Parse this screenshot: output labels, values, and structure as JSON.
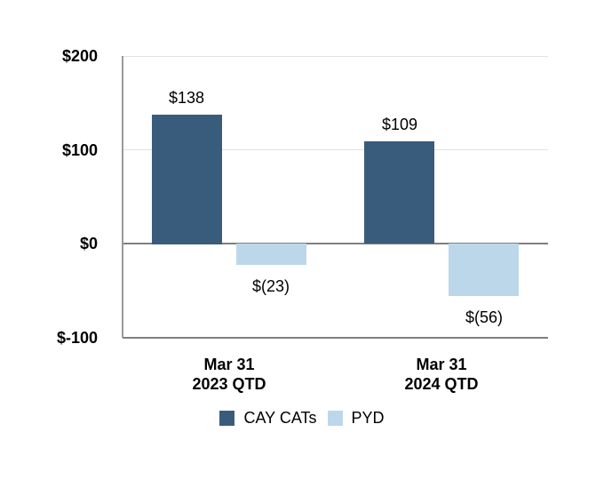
{
  "chart_data": {
    "type": "bar",
    "categories": [
      [
        "Mar 31",
        "2023 QTD"
      ],
      [
        "Mar 31",
        "2024 QTD"
      ]
    ],
    "series": [
      {
        "name": "CAY CATs",
        "color": "#3a5c7c",
        "values": [
          138,
          109
        ],
        "labels": [
          "$138",
          "$109"
        ]
      },
      {
        "name": "PYD",
        "color": "#bdd7ea",
        "values": [
          -23,
          -56
        ],
        "labels": [
          "$(23)",
          "$(56)"
        ]
      }
    ],
    "yticks": [
      {
        "value": 200,
        "label": "$200"
      },
      {
        "value": 100,
        "label": "$100"
      },
      {
        "value": 0,
        "label": "$0"
      },
      {
        "value": -100,
        "label": "$-100"
      }
    ],
    "ylim": [
      -100,
      200
    ],
    "grid": true,
    "legend_position": "bottom",
    "title": "",
    "xlabel": "",
    "ylabel": "",
    "colors": {
      "grid": "#e2e2e2",
      "axis": "#7f7f7f",
      "y_axis_line": "#9a9a9a",
      "text": "#000000",
      "background": "#ffffff"
    }
  }
}
